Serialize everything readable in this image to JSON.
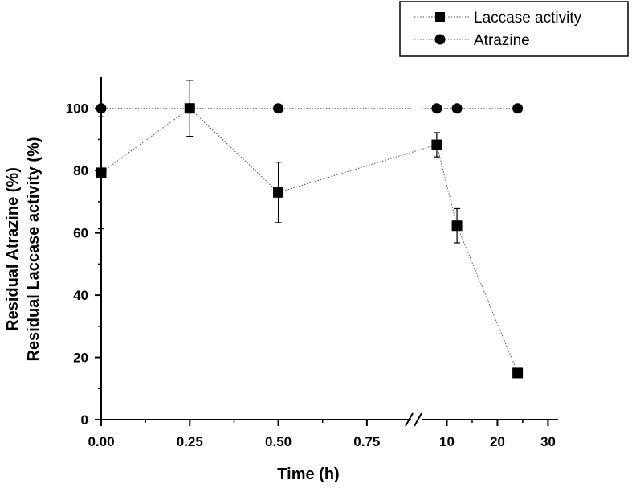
{
  "chart_data": {
    "type": "scatter",
    "xlabel": "Time (h)",
    "ylabel_lines": [
      "Residual Atrazine (%)",
      "Residual Laccase activity (%)"
    ],
    "ylim": [
      0,
      110
    ],
    "y_ticks": [
      0,
      20,
      40,
      60,
      80,
      100
    ],
    "y_tick_labels": [
      "0",
      "20",
      "40",
      "60",
      "80",
      "100"
    ],
    "axis_break": "between 0.75 and 10 h",
    "x_segments": [
      {
        "range": [
          0,
          0.875
        ]
      },
      {
        "range": [
          5,
          32
        ]
      }
    ],
    "x_ticks": [
      0,
      0.25,
      0.5,
      0.75,
      10,
      20,
      30
    ],
    "x_tick_labels": [
      "0.00",
      "0.25",
      "0.50",
      "0.75",
      "10",
      "20",
      "30"
    ],
    "series": [
      {
        "name": "Laccase activity",
        "marker": "square",
        "x": [
          0,
          0.25,
          0.5,
          8,
          12,
          24
        ],
        "y": [
          79.3,
          100,
          73.0,
          88.3,
          62.3,
          15.0
        ],
        "yerr": [
          18.0,
          9.0,
          9.7,
          3.9,
          5.5,
          1.5
        ]
      },
      {
        "name": "Atrazine",
        "marker": "circle",
        "x": [
          0,
          0.25,
          0.5,
          8,
          12,
          24
        ],
        "y": [
          100,
          100,
          100,
          100,
          100,
          100
        ],
        "yerr": [
          0,
          0,
          0,
          0,
          0,
          0
        ]
      }
    ],
    "legend_position": "top-right"
  }
}
